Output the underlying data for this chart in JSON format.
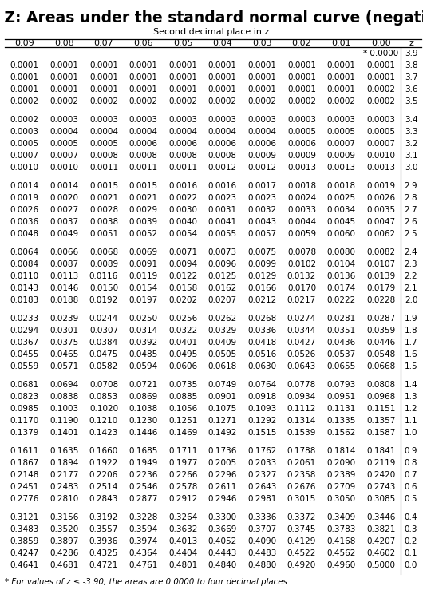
{
  "title": "Table Z: Areas under the standard normal curve (negative Z)",
  "subtitle": "Second decimal place in z",
  "col_headers": [
    "0.09",
    "0.08",
    "0.07",
    "0.06",
    "0.05",
    "0.04",
    "0.03",
    "0.02",
    "0.01",
    "0.00",
    "z"
  ],
  "row_groups": [
    {
      "z_values": [
        "3.9",
        "3.8",
        "3.7",
        "3.6",
        "3.5"
      ],
      "data": [
        [
          "",
          "",
          "",
          "",
          "",
          "",
          "",
          "",
          "",
          "0.0000"
        ],
        [
          "0.0001",
          "0.0001",
          "0.0001",
          "0.0001",
          "0.0001",
          "0.0001",
          "0.0001",
          "0.0001",
          "0.0001",
          "0.0001"
        ],
        [
          "0.0001",
          "0.0001",
          "0.0001",
          "0.0001",
          "0.0001",
          "0.0001",
          "0.0001",
          "0.0001",
          "0.0001",
          "0.0001"
        ],
        [
          "0.0001",
          "0.0001",
          "0.0001",
          "0.0001",
          "0.0001",
          "0.0001",
          "0.0001",
          "0.0001",
          "0.0001",
          "0.0002"
        ],
        [
          "0.0002",
          "0.0002",
          "0.0002",
          "0.0002",
          "0.0002",
          "0.0002",
          "0.0002",
          "0.0002",
          "0.0002",
          "0.0002"
        ]
      ]
    },
    {
      "z_values": [
        "3.4",
        "3.3",
        "3.2",
        "3.1",
        "3.0"
      ],
      "data": [
        [
          "0.0002",
          "0.0003",
          "0.0003",
          "0.0003",
          "0.0003",
          "0.0003",
          "0.0003",
          "0.0003",
          "0.0003",
          "0.0003"
        ],
        [
          "0.0003",
          "0.0004",
          "0.0004",
          "0.0004",
          "0.0004",
          "0.0004",
          "0.0004",
          "0.0005",
          "0.0005",
          "0.0005"
        ],
        [
          "0.0005",
          "0.0005",
          "0.0005",
          "0.0006",
          "0.0006",
          "0.0006",
          "0.0006",
          "0.0006",
          "0.0007",
          "0.0007"
        ],
        [
          "0.0007",
          "0.0007",
          "0.0008",
          "0.0008",
          "0.0008",
          "0.0008",
          "0.0009",
          "0.0009",
          "0.0009",
          "0.0010"
        ],
        [
          "0.0010",
          "0.0010",
          "0.0011",
          "0.0011",
          "0.0011",
          "0.0012",
          "0.0012",
          "0.0013",
          "0.0013",
          "0.0013"
        ]
      ]
    },
    {
      "z_values": [
        "2.9",
        "2.8",
        "2.7",
        "2.6",
        "2.5"
      ],
      "data": [
        [
          "0.0014",
          "0.0014",
          "0.0015",
          "0.0015",
          "0.0016",
          "0.0016",
          "0.0017",
          "0.0018",
          "0.0018",
          "0.0019"
        ],
        [
          "0.0019",
          "0.0020",
          "0.0021",
          "0.0021",
          "0.0022",
          "0.0023",
          "0.0023",
          "0.0024",
          "0.0025",
          "0.0026"
        ],
        [
          "0.0026",
          "0.0027",
          "0.0028",
          "0.0029",
          "0.0030",
          "0.0031",
          "0.0032",
          "0.0033",
          "0.0034",
          "0.0035"
        ],
        [
          "0.0036",
          "0.0037",
          "0.0038",
          "0.0039",
          "0.0040",
          "0.0041",
          "0.0043",
          "0.0044",
          "0.0045",
          "0.0047"
        ],
        [
          "0.0048",
          "0.0049",
          "0.0051",
          "0.0052",
          "0.0054",
          "0.0055",
          "0.0057",
          "0.0059",
          "0.0060",
          "0.0062"
        ]
      ]
    },
    {
      "z_values": [
        "2.4",
        "2.3",
        "2.2",
        "2.1",
        "2.0"
      ],
      "data": [
        [
          "0.0064",
          "0.0066",
          "0.0068",
          "0.0069",
          "0.0071",
          "0.0073",
          "0.0075",
          "0.0078",
          "0.0080",
          "0.0082"
        ],
        [
          "0.0084",
          "0.0087",
          "0.0089",
          "0.0091",
          "0.0094",
          "0.0096",
          "0.0099",
          "0.0102",
          "0.0104",
          "0.0107"
        ],
        [
          "0.0110",
          "0.0113",
          "0.0116",
          "0.0119",
          "0.0122",
          "0.0125",
          "0.0129",
          "0.0132",
          "0.0136",
          "0.0139"
        ],
        [
          "0.0143",
          "0.0146",
          "0.0150",
          "0.0154",
          "0.0158",
          "0.0162",
          "0.0166",
          "0.0170",
          "0.0174",
          "0.0179"
        ],
        [
          "0.0183",
          "0.0188",
          "0.0192",
          "0.0197",
          "0.0202",
          "0.0207",
          "0.0212",
          "0.0217",
          "0.0222",
          "0.0228"
        ]
      ]
    },
    {
      "z_values": [
        "1.9",
        "1.8",
        "1.7",
        "1.6",
        "1.5"
      ],
      "data": [
        [
          "0.0233",
          "0.0239",
          "0.0244",
          "0.0250",
          "0.0256",
          "0.0262",
          "0.0268",
          "0.0274",
          "0.0281",
          "0.0287"
        ],
        [
          "0.0294",
          "0.0301",
          "0.0307",
          "0.0314",
          "0.0322",
          "0.0329",
          "0.0336",
          "0.0344",
          "0.0351",
          "0.0359"
        ],
        [
          "0.0367",
          "0.0375",
          "0.0384",
          "0.0392",
          "0.0401",
          "0.0409",
          "0.0418",
          "0.0427",
          "0.0436",
          "0.0446"
        ],
        [
          "0.0455",
          "0.0465",
          "0.0475",
          "0.0485",
          "0.0495",
          "0.0505",
          "0.0516",
          "0.0526",
          "0.0537",
          "0.0548"
        ],
        [
          "0.0559",
          "0.0571",
          "0.0582",
          "0.0594",
          "0.0606",
          "0.0618",
          "0.0630",
          "0.0643",
          "0.0655",
          "0.0668"
        ]
      ]
    },
    {
      "z_values": [
        "1.4",
        "1.3",
        "1.2",
        "1.1",
        "1.0"
      ],
      "data": [
        [
          "0.0681",
          "0.0694",
          "0.0708",
          "0.0721",
          "0.0735",
          "0.0749",
          "0.0764",
          "0.0778",
          "0.0793",
          "0.0808"
        ],
        [
          "0.0823",
          "0.0838",
          "0.0853",
          "0.0869",
          "0.0885",
          "0.0901",
          "0.0918",
          "0.0934",
          "0.0951",
          "0.0968"
        ],
        [
          "0.0985",
          "0.1003",
          "0.1020",
          "0.1038",
          "0.1056",
          "0.1075",
          "0.1093",
          "0.1112",
          "0.1131",
          "0.1151"
        ],
        [
          "0.1170",
          "0.1190",
          "0.1210",
          "0.1230",
          "0.1251",
          "0.1271",
          "0.1292",
          "0.1314",
          "0.1335",
          "0.1357"
        ],
        [
          "0.1379",
          "0.1401",
          "0.1423",
          "0.1446",
          "0.1469",
          "0.1492",
          "0.1515",
          "0.1539",
          "0.1562",
          "0.1587"
        ]
      ]
    },
    {
      "z_values": [
        "0.9",
        "0.8",
        "0.7",
        "0.6",
        "0.5"
      ],
      "data": [
        [
          "0.1611",
          "0.1635",
          "0.1660",
          "0.1685",
          "0.1711",
          "0.1736",
          "0.1762",
          "0.1788",
          "0.1814",
          "0.1841"
        ],
        [
          "0.1867",
          "0.1894",
          "0.1922",
          "0.1949",
          "0.1977",
          "0.2005",
          "0.2033",
          "0.2061",
          "0.2090",
          "0.2119"
        ],
        [
          "0.2148",
          "0.2177",
          "0.2206",
          "0.2236",
          "0.2266",
          "0.2296",
          "0.2327",
          "0.2358",
          "0.2389",
          "0.2420"
        ],
        [
          "0.2451",
          "0.2483",
          "0.2514",
          "0.2546",
          "0.2578",
          "0.2611",
          "0.2643",
          "0.2676",
          "0.2709",
          "0.2743"
        ],
        [
          "0.2776",
          "0.2810",
          "0.2843",
          "0.2877",
          "0.2912",
          "0.2946",
          "0.2981",
          "0.3015",
          "0.3050",
          "0.3085"
        ]
      ]
    },
    {
      "z_values": [
        "0.4",
        "0.3",
        "0.2",
        "0.1",
        "0.0"
      ],
      "data": [
        [
          "0.3121",
          "0.3156",
          "0.3192",
          "0.3228",
          "0.3264",
          "0.3300",
          "0.3336",
          "0.3372",
          "0.3409",
          "0.3446"
        ],
        [
          "0.3483",
          "0.3520",
          "0.3557",
          "0.3594",
          "0.3632",
          "0.3669",
          "0.3707",
          "0.3745",
          "0.3783",
          "0.3821"
        ],
        [
          "0.3859",
          "0.3897",
          "0.3936",
          "0.3974",
          "0.4013",
          "0.4052",
          "0.4090",
          "0.4129",
          "0.4168",
          "0.4207"
        ],
        [
          "0.4247",
          "0.4286",
          "0.4325",
          "0.4364",
          "0.4404",
          "0.4443",
          "0.4483",
          "0.4522",
          "0.4562",
          "0.4602"
        ],
        [
          "0.4641",
          "0.4681",
          "0.4721",
          "0.4761",
          "0.4801",
          "0.4840",
          "0.4880",
          "0.4920",
          "0.4960",
          "0.5000"
        ]
      ]
    }
  ],
  "footnote": "* For values of z ≤ -3.90, the areas are 0.0000 to four decimal places",
  "bg_color": "#ffffff",
  "text_color": "#000000",
  "title_fontsize": 13.5,
  "data_fontsize": 7.5,
  "header_fontsize": 8.0
}
